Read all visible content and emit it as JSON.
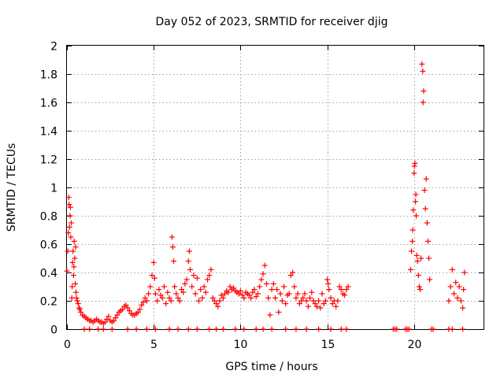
{
  "chart_data": {
    "type": "scatter",
    "title": "Day 052 of 2023, SRMTID for receiver djig",
    "xlabel": "GPS time / hours",
    "ylabel": "SRMTID / TECUs",
    "xlim": [
      0,
      24
    ],
    "ylim": [
      0,
      2
    ],
    "xticks": [
      0,
      5,
      10,
      15,
      20
    ],
    "yticks": [
      0,
      0.2,
      0.4,
      0.6,
      0.8,
      1,
      1.2,
      1.4,
      1.6,
      1.8,
      2
    ],
    "xtick_labels": [
      "0",
      "5",
      "10",
      "15",
      "20"
    ],
    "ytick_labels": [
      "0",
      "0.2",
      "0.4",
      "0.6",
      "0.8",
      "1",
      "1.2",
      "1.4",
      "1.6",
      "1.8",
      "2"
    ],
    "grid": true,
    "marker": "+",
    "marker_color": "#ff0000",
    "series": [
      {
        "name": "SRMTID",
        "points": [
          [
            0.0,
            0.41
          ],
          [
            0.05,
            0.55
          ],
          [
            0.08,
            0.68
          ],
          [
            0.1,
            0.93
          ],
          [
            0.12,
            0.88
          ],
          [
            0.15,
            0.72
          ],
          [
            0.18,
            0.8
          ],
          [
            0.2,
            0.86
          ],
          [
            0.22,
            0.65
          ],
          [
            0.25,
            0.75
          ],
          [
            0.28,
            0.22
          ],
          [
            0.3,
            0.3
          ],
          [
            0.32,
            0.47
          ],
          [
            0.35,
            0.55
          ],
          [
            0.38,
            0.38
          ],
          [
            0.4,
            0.44
          ],
          [
            0.42,
            0.62
          ],
          [
            0.45,
            0.5
          ],
          [
            0.48,
            0.32
          ],
          [
            0.5,
            0.58
          ],
          [
            0.52,
            0.26
          ],
          [
            0.55,
            0.22
          ],
          [
            0.6,
            0.2
          ],
          [
            0.65,
            0.18
          ],
          [
            0.7,
            0.15
          ],
          [
            0.75,
            0.14
          ],
          [
            0.8,
            0.12
          ],
          [
            0.9,
            0.1
          ],
          [
            1.0,
            0.09
          ],
          [
            1.1,
            0.08
          ],
          [
            1.2,
            0.07
          ],
          [
            1.3,
            0.06
          ],
          [
            1.4,
            0.06
          ],
          [
            1.5,
            0.05
          ],
          [
            1.6,
            0.06
          ],
          [
            1.7,
            0.07
          ],
          [
            1.8,
            0.06
          ],
          [
            1.9,
            0.05
          ],
          [
            2.0,
            0.05
          ],
          [
            2.1,
            0.04
          ],
          [
            2.2,
            0.05
          ],
          [
            2.3,
            0.07
          ],
          [
            2.4,
            0.09
          ],
          [
            2.5,
            0.06
          ],
          [
            2.6,
            0.05
          ],
          [
            2.7,
            0.06
          ],
          [
            2.8,
            0.08
          ],
          [
            2.9,
            0.1
          ],
          [
            3.0,
            0.12
          ],
          [
            3.1,
            0.13
          ],
          [
            3.2,
            0.14
          ],
          [
            3.3,
            0.16
          ],
          [
            3.4,
            0.17
          ],
          [
            3.5,
            0.15
          ],
          [
            3.6,
            0.13
          ],
          [
            3.7,
            0.11
          ],
          [
            3.8,
            0.1
          ],
          [
            3.9,
            0.1
          ],
          [
            4.0,
            0.11
          ],
          [
            4.1,
            0.12
          ],
          [
            4.2,
            0.14
          ],
          [
            4.3,
            0.17
          ],
          [
            4.4,
            0.19
          ],
          [
            4.5,
            0.22
          ],
          [
            4.6,
            0.2
          ],
          [
            4.7,
            0.25
          ],
          [
            4.8,
            0.3
          ],
          [
            4.9,
            0.38
          ],
          [
            5.0,
            0.47
          ],
          [
            5.05,
            0.36
          ],
          [
            5.1,
            0.25
          ],
          [
            5.2,
            0.2
          ],
          [
            5.3,
            0.28
          ],
          [
            5.4,
            0.24
          ],
          [
            5.5,
            0.22
          ],
          [
            5.6,
            0.3
          ],
          [
            5.7,
            0.18
          ],
          [
            5.8,
            0.26
          ],
          [
            5.9,
            0.22
          ],
          [
            6.0,
            0.2
          ],
          [
            6.05,
            0.65
          ],
          [
            6.1,
            0.58
          ],
          [
            6.15,
            0.48
          ],
          [
            6.2,
            0.3
          ],
          [
            6.3,
            0.25
          ],
          [
            6.4,
            0.22
          ],
          [
            6.5,
            0.2
          ],
          [
            6.6,
            0.28
          ],
          [
            6.7,
            0.26
          ],
          [
            6.8,
            0.32
          ],
          [
            6.9,
            0.35
          ],
          [
            7.0,
            0.48
          ],
          [
            7.05,
            0.55
          ],
          [
            7.1,
            0.42
          ],
          [
            7.2,
            0.3
          ],
          [
            7.3,
            0.38
          ],
          [
            7.4,
            0.25
          ],
          [
            7.5,
            0.36
          ],
          [
            7.6,
            0.2
          ],
          [
            7.7,
            0.28
          ],
          [
            7.8,
            0.22
          ],
          [
            7.9,
            0.3
          ],
          [
            8.0,
            0.26
          ],
          [
            8.1,
            0.35
          ],
          [
            8.2,
            0.38
          ],
          [
            8.3,
            0.42
          ],
          [
            8.4,
            0.22
          ],
          [
            8.5,
            0.2
          ],
          [
            8.6,
            0.18
          ],
          [
            8.7,
            0.16
          ],
          [
            8.8,
            0.2
          ],
          [
            8.9,
            0.24
          ],
          [
            9.0,
            0.22
          ],
          [
            9.1,
            0.25
          ],
          [
            9.2,
            0.27
          ],
          [
            9.3,
            0.26
          ],
          [
            9.4,
            0.3
          ],
          [
            9.5,
            0.28
          ],
          [
            9.6,
            0.29
          ],
          [
            9.7,
            0.27
          ],
          [
            9.8,
            0.26
          ],
          [
            9.9,
            0.25
          ],
          [
            10.0,
            0.27
          ],
          [
            10.1,
            0.24
          ],
          [
            10.2,
            0.22
          ],
          [
            10.3,
            0.26
          ],
          [
            10.4,
            0.25
          ],
          [
            10.5,
            0.24
          ],
          [
            10.6,
            0.22
          ],
          [
            10.7,
            0.26
          ],
          [
            10.8,
            0.28
          ],
          [
            10.9,
            0.23
          ],
          [
            11.0,
            0.25
          ],
          [
            11.1,
            0.3
          ],
          [
            11.2,
            0.35
          ],
          [
            11.3,
            0.39
          ],
          [
            11.4,
            0.45
          ],
          [
            11.5,
            0.32
          ],
          [
            11.6,
            0.22
          ],
          [
            11.7,
            0.1
          ],
          [
            11.8,
            0.28
          ],
          [
            11.9,
            0.32
          ],
          [
            12.0,
            0.22
          ],
          [
            12.1,
            0.28
          ],
          [
            12.2,
            0.12
          ],
          [
            12.3,
            0.25
          ],
          [
            12.4,
            0.2
          ],
          [
            12.5,
            0.3
          ],
          [
            12.6,
            0.18
          ],
          [
            12.7,
            0.24
          ],
          [
            12.8,
            0.25
          ],
          [
            12.9,
            0.38
          ],
          [
            13.0,
            0.4
          ],
          [
            13.1,
            0.3
          ],
          [
            13.2,
            0.22
          ],
          [
            13.3,
            0.25
          ],
          [
            13.4,
            0.18
          ],
          [
            13.5,
            0.2
          ],
          [
            13.6,
            0.22
          ],
          [
            13.7,
            0.25
          ],
          [
            13.8,
            0.2
          ],
          [
            13.9,
            0.16
          ],
          [
            14.0,
            0.22
          ],
          [
            14.1,
            0.26
          ],
          [
            14.2,
            0.2
          ],
          [
            14.3,
            0.18
          ],
          [
            14.4,
            0.16
          ],
          [
            14.5,
            0.2
          ],
          [
            14.6,
            0.15
          ],
          [
            14.7,
            0.25
          ],
          [
            14.8,
            0.18
          ],
          [
            14.9,
            0.2
          ],
          [
            15.0,
            0.35
          ],
          [
            15.05,
            0.32
          ],
          [
            15.1,
            0.28
          ],
          [
            15.2,
            0.22
          ],
          [
            15.3,
            0.18
          ],
          [
            15.4,
            0.2
          ],
          [
            15.5,
            0.16
          ],
          [
            15.6,
            0.2
          ],
          [
            15.7,
            0.3
          ],
          [
            15.8,
            0.28
          ],
          [
            15.9,
            0.25
          ],
          [
            16.0,
            0.24
          ],
          [
            16.1,
            0.28
          ],
          [
            16.2,
            0.3
          ],
          [
            19.8,
            0.42
          ],
          [
            19.85,
            0.55
          ],
          [
            19.9,
            0.62
          ],
          [
            19.92,
            0.7
          ],
          [
            19.95,
            0.84
          ],
          [
            20.0,
            1.1
          ],
          [
            20.02,
            1.15
          ],
          [
            20.05,
            1.17
          ],
          [
            20.08,
            0.9
          ],
          [
            20.1,
            0.95
          ],
          [
            20.12,
            0.8
          ],
          [
            20.15,
            0.52
          ],
          [
            20.2,
            0.48
          ],
          [
            20.25,
            0.38
          ],
          [
            20.3,
            0.3
          ],
          [
            20.35,
            0.28
          ],
          [
            20.4,
            0.5
          ],
          [
            20.45,
            1.87
          ],
          [
            20.5,
            1.82
          ],
          [
            20.52,
            1.6
          ],
          [
            20.55,
            1.68
          ],
          [
            20.6,
            0.98
          ],
          [
            20.65,
            0.85
          ],
          [
            20.7,
            1.06
          ],
          [
            20.75,
            0.75
          ],
          [
            20.8,
            0.62
          ],
          [
            20.85,
            0.5
          ],
          [
            20.9,
            0.35
          ],
          [
            22.0,
            0.2
          ],
          [
            22.1,
            0.3
          ],
          [
            22.2,
            0.42
          ],
          [
            22.3,
            0.25
          ],
          [
            22.4,
            0.33
          ],
          [
            22.5,
            0.22
          ],
          [
            22.6,
            0.3
          ],
          [
            22.7,
            0.2
          ],
          [
            22.8,
            0.15
          ],
          [
            22.85,
            0.28
          ],
          [
            22.9,
            0.4
          ]
        ],
        "zero_markers": [
          1.0,
          1.3,
          1.8,
          2.1,
          2.6,
          3.5,
          4.0,
          4.6,
          5.1,
          5.9,
          6.4,
          7.0,
          7.5,
          8.2,
          8.6,
          9.0,
          9.7,
          10.2,
          10.9,
          11.3,
          11.8,
          12.6,
          13.2,
          13.8,
          14.5,
          15.2,
          15.8,
          16.1,
          18.8,
          18.9,
          19.0,
          19.5,
          19.6,
          19.7,
          21.0,
          21.1,
          22.0,
          22.2,
          22.8
        ]
      }
    ]
  }
}
